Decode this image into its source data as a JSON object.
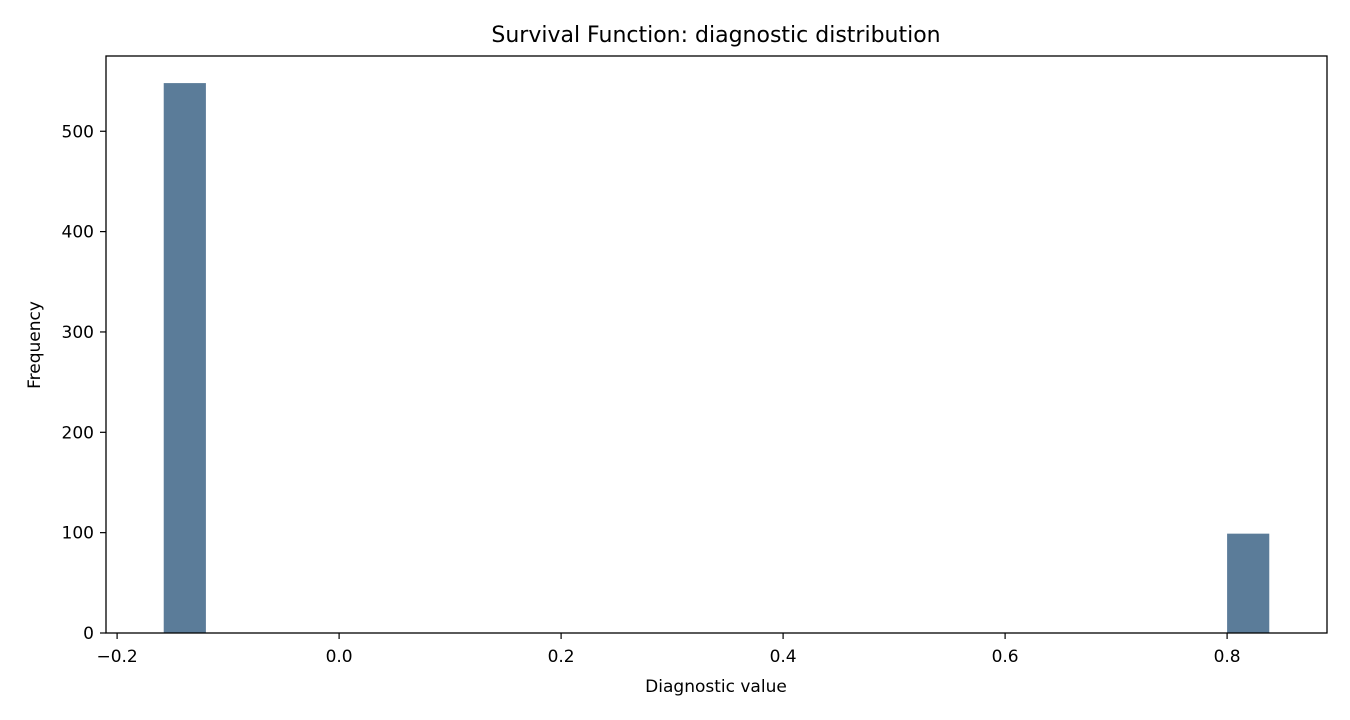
{
  "chart_data": {
    "type": "bar",
    "title": "Survival Function: diagnostic distribution",
    "xlabel": "Diagnostic value",
    "ylabel": "Frequency",
    "xlim": [
      -0.21,
      0.89
    ],
    "ylim": [
      0,
      575
    ],
    "x_ticks": [
      -0.2,
      0.0,
      0.2,
      0.4,
      0.6,
      0.8
    ],
    "x_tick_labels": [
      "−0.2",
      "0.0",
      "0.2",
      "0.4",
      "0.6",
      "0.8"
    ],
    "y_ticks": [
      0,
      100,
      200,
      300,
      400,
      500
    ],
    "y_tick_labels": [
      "0",
      "100",
      "200",
      "300",
      "400",
      "500"
    ],
    "bars": [
      {
        "x0": -0.158,
        "x1": -0.12,
        "value": 548
      },
      {
        "x0": 0.8,
        "x1": 0.838,
        "value": 99
      }
    ],
    "grid": false,
    "bar_color": "#5b7c99"
  }
}
